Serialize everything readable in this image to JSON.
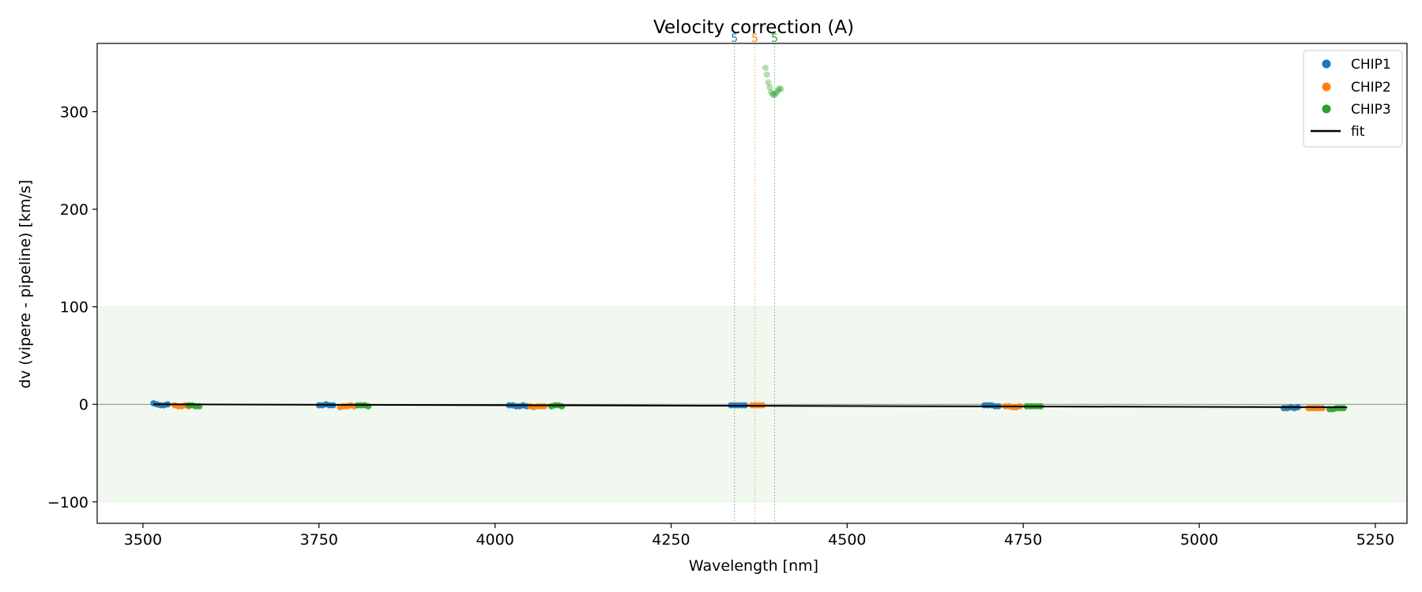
{
  "chart_data": {
    "type": "scatter",
    "title": "Velocity correction (A)",
    "xlabel": "Wavelength [nm]",
    "ylabel": "dv (vipere - pipeline) [km/s]",
    "xlim": [
      3435,
      5295
    ],
    "ylim": [
      -122,
      370
    ],
    "xticks": [
      3500,
      3750,
      4000,
      4250,
      4500,
      4750,
      5000,
      5250
    ],
    "yticks": [
      -100,
      0,
      100,
      200,
      300
    ],
    "xtick_labels": [
      "3500",
      "3750",
      "4000",
      "4250",
      "4500",
      "4750",
      "5000",
      "5250"
    ],
    "ytick_labels": [
      "−100",
      "0",
      "100",
      "200",
      "300"
    ],
    "grid": false,
    "legend_position": "top-right",
    "band": {
      "from": -100,
      "to": 100,
      "color": "#2ca02c"
    },
    "colors": {
      "CHIP1": "#1f77b4",
      "CHIP2": "#ff7f0e",
      "CHIP3": "#2ca02c",
      "fit": "#000000"
    },
    "series": [
      {
        "name": "CHIP1",
        "x": [
          3515,
          3520,
          3525,
          3530,
          3535,
          3750,
          3755,
          3760,
          3765,
          3770,
          4020,
          4025,
          4030,
          4035,
          4040,
          4045,
          4335,
          4340,
          4345,
          4350,
          4355,
          4695,
          4700,
          4705,
          4710,
          4715,
          5120,
          5125,
          5130,
          5135,
          5140
        ],
        "y": [
          1,
          0,
          -1,
          -1,
          0,
          -1,
          -1,
          0,
          -1,
          -1,
          -1,
          -1,
          -2,
          -2,
          -1,
          -2,
          -1,
          -1,
          -1,
          -1,
          -1,
          -1,
          -1,
          -1,
          -2,
          -2,
          -4,
          -4,
          -3,
          -4,
          -3
        ]
      },
      {
        "name": "CHIP2",
        "x": [
          3545,
          3550,
          3555,
          3560,
          3565,
          3780,
          3785,
          3790,
          3795,
          3800,
          4050,
          4055,
          4060,
          4065,
          4070,
          4365,
          4370,
          4375,
          4380,
          4725,
          4730,
          4735,
          4740,
          4745,
          5155,
          5160,
          5165,
          5170,
          5175
        ],
        "y": [
          -1,
          -2,
          -2,
          -1,
          -2,
          -3,
          -2,
          -2,
          -1,
          -2,
          -2,
          -3,
          -2,
          -2,
          -2,
          -1,
          -1,
          -1,
          -1,
          -2,
          -2,
          -3,
          -3,
          -2,
          -4,
          -4,
          -4,
          -4,
          -4
        ]
      },
      {
        "name": "CHIP3",
        "x": [
          3565,
          3570,
          3575,
          3580,
          3805,
          3810,
          3815,
          3820,
          4080,
          4085,
          4090,
          4095,
          4755,
          4760,
          4765,
          4770,
          4775,
          5185,
          5190,
          5195,
          5200,
          5205,
          4384,
          4386,
          4388,
          4390,
          4392,
          4394,
          4396,
          4398,
          4400,
          4402,
          4404,
          4406
        ],
        "y": [
          -1,
          -1,
          -2,
          -2,
          -1,
          -1,
          -1,
          -2,
          -2,
          -1,
          -1,
          -2,
          -2,
          -2,
          -2,
          -2,
          -2,
          -5,
          -5,
          -4,
          -4,
          -4,
          345,
          338,
          330,
          325,
          320,
          318,
          317,
          318,
          320,
          322,
          324,
          323
        ]
      },
      {
        "name": "fit",
        "x": [
          3515,
          5210
        ],
        "y": [
          0,
          -3
        ]
      }
    ],
    "vertical_markers": [
      {
        "x": 4340,
        "label": "5",
        "series": "CHIP1"
      },
      {
        "x": 4369,
        "label": "5",
        "series": "CHIP2"
      },
      {
        "x": 4397,
        "label": "5",
        "series": "CHIP3"
      }
    ]
  }
}
